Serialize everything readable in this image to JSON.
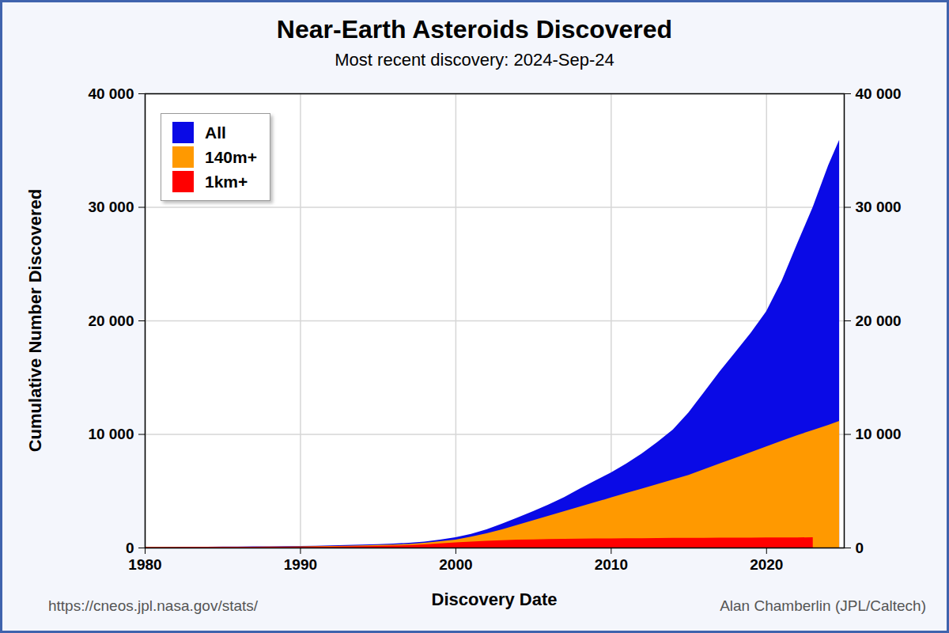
{
  "chart_data": {
    "type": "area",
    "title": "Near-Earth Asteroids Discovered",
    "subtitle": "Most recent discovery: 2024-Sep-24",
    "x_label": "Discovery Date",
    "y_label": "Cumulative Number Discovered",
    "annotations": [
      "https://cneos.jpl.nasa.gov/stats/",
      "Alan Chamberlin (JPL/Caltech)"
    ],
    "x": [
      1980,
      1981,
      1982,
      1983,
      1984,
      1985,
      1986,
      1987,
      1988,
      1989,
      1990,
      1991,
      1992,
      1993,
      1994,
      1995,
      1996,
      1997,
      1998,
      1999,
      2000,
      2001,
      2002,
      2003,
      2004,
      2005,
      2006,
      2007,
      2008,
      2009,
      2010,
      2011,
      2012,
      2013,
      2014,
      2015,
      2016,
      2017,
      2018,
      2019,
      2020,
      2021,
      2022,
      2023,
      2024,
      2024.7
    ],
    "series": [
      {
        "name": "All",
        "color": "#0a0ae6",
        "values": [
          55,
          60,
          65,
          70,
          75,
          85,
          90,
          100,
          110,
          120,
          135,
          160,
          190,
          220,
          260,
          300,
          350,
          420,
          530,
          700,
          900,
          1200,
          1600,
          2100,
          2650,
          3200,
          3800,
          4450,
          5200,
          5900,
          6600,
          7400,
          8300,
          9300,
          10400,
          11900,
          13700,
          15500,
          17200,
          18900,
          20800,
          23500,
          26800,
          30000,
          33700,
          35900
        ]
      },
      {
        "name": "140m+",
        "color": "#ff9900",
        "values": [
          45,
          48,
          51,
          55,
          58,
          62,
          66,
          72,
          80,
          90,
          100,
          115,
          135,
          160,
          190,
          220,
          260,
          320,
          420,
          560,
          700,
          950,
          1250,
          1600,
          2000,
          2400,
          2800,
          3200,
          3600,
          4000,
          4400,
          4800,
          5200,
          5600,
          6000,
          6400,
          6900,
          7400,
          7900,
          8400,
          8900,
          9400,
          9900,
          10350,
          10800,
          11150
        ]
      },
      {
        "name": "1km+",
        "color": "#ff0000",
        "values": [
          35,
          38,
          41,
          44,
          47,
          50,
          53,
          58,
          63,
          68,
          75,
          85,
          95,
          110,
          125,
          145,
          170,
          210,
          280,
          370,
          450,
          530,
          600,
          650,
          690,
          720,
          745,
          765,
          780,
          795,
          805,
          815,
          825,
          835,
          845,
          852,
          860,
          866,
          872,
          878,
          884,
          890,
          895,
          900,
          null,
          null
        ]
      }
    ],
    "xlim": [
      1980,
      2025
    ],
    "xticks": [
      1980,
      1990,
      2000,
      2010,
      2020
    ],
    "ylim": [
      0,
      40000
    ],
    "yticks": [
      0,
      {
        "value": 10000,
        "label": "10 000"
      },
      {
        "value": 20000,
        "label": "20 000"
      },
      {
        "value": 30000,
        "label": "30 000"
      },
      {
        "value": 40000,
        "label": "40 000"
      }
    ],
    "grid": true,
    "legend": "top-left"
  }
}
